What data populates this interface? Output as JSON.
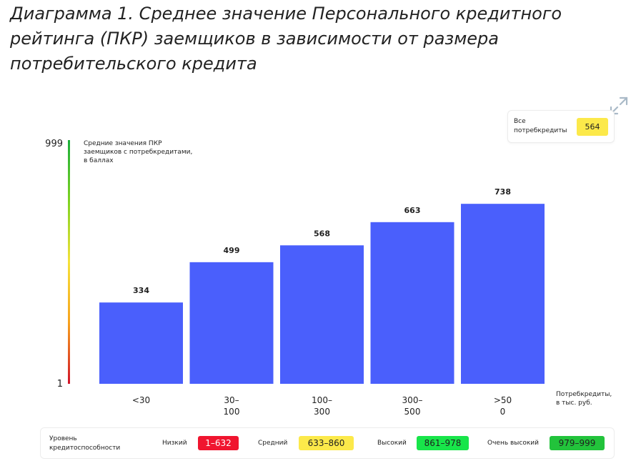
{
  "page": {
    "title": "Диаграмма 1. Среднее значение Персонального кредитного рейтинга (ПКР) заемщиков в зависимости от размера потребительского кредита"
  },
  "icons": {
    "expand": "expand-icon"
  },
  "total": {
    "label": "Все потребкредиты",
    "value": "564",
    "color": "#fce94a"
  },
  "chart_data": {
    "type": "bar",
    "categories": [
      "<30",
      "30–100",
      "100–300",
      "300–500",
      ">500"
    ],
    "category_lines": [
      [
        "<30"
      ],
      [
        "30–",
        "100"
      ],
      [
        "100–",
        "300"
      ],
      [
        "300–",
        "500"
      ],
      [
        ">50",
        "0"
      ]
    ],
    "values": [
      334,
      499,
      568,
      663,
      738
    ],
    "data_labels": [
      "334",
      "499",
      "568",
      "663",
      "738"
    ],
    "ylabel": "Средние значения ПКР заемщиков с потребкредитами, в баллах",
    "ylabel_lines": [
      "Средние значения ПКР",
      "заемщиков с потребкредитами,",
      "в баллах"
    ],
    "xlabel": "Потребкредиты, в тыс. руб.",
    "xlabel_lines": [
      "Потребкредиты,",
      "в тыс. руб."
    ],
    "ylim": [
      1,
      999
    ],
    "ytick_labels": [
      "999",
      "1"
    ],
    "bar_color": "#4a5ffc",
    "grid": false,
    "axis_gradient": [
      "#d2142a",
      "#f7a21e",
      "#f5e23a",
      "#7ed321",
      "#1aae3b"
    ]
  },
  "legend": {
    "title": "Уровень кредитоспособности",
    "levels": [
      {
        "name": "Низкий",
        "range": "1–632",
        "color": "#f0152f",
        "text_color": "#ffffff"
      },
      {
        "name": "Средний",
        "range": "633–860",
        "color": "#fce94a",
        "text_color": "#1f1f1f"
      },
      {
        "name": "Высокий",
        "range": "861–978",
        "color": "#18e54a",
        "text_color": "#1f1f1f"
      },
      {
        "name": "Очень высокий",
        "range": "979–999",
        "color": "#22c33b",
        "text_color": "#1f1f1f"
      }
    ]
  }
}
